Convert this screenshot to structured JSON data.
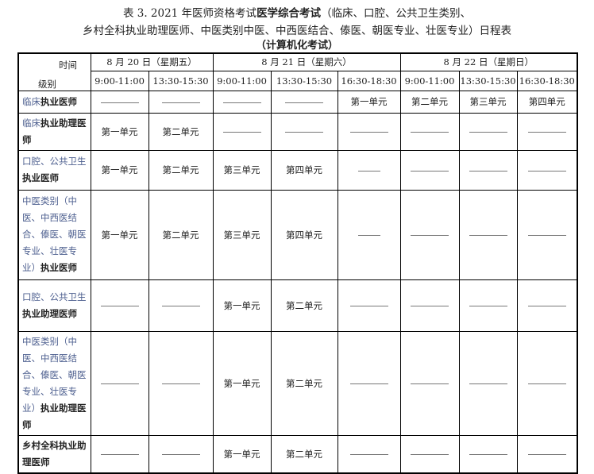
{
  "title": {
    "line1_prefix": "表 3.  2021 年医师资格考试",
    "line1_bold": "医学综合考试",
    "line1_suffix": "（临床、口腔、公共卫生类别、",
    "line2": "乡村全科执业助理医师、中医类别中医、中西医结合、傣医、朝医专业、壮医专业）日程表",
    "line3": "（计算机化考试）"
  },
  "header": {
    "time_label": "时间",
    "level_label": "级别",
    "dates": [
      "8 月 20 日（星期五）",
      "8 月 21 日（星期六）",
      "8 月 22 日（星期日）"
    ],
    "slots": [
      "9:00-11:00",
      "13:30-15:30",
      "9:00-11:00",
      "13:30-15:30",
      "16:30-18:30",
      "9:00-11:00",
      "13:30-15:30",
      "16:30-18:30"
    ]
  },
  "rows": [
    {
      "prefix": "临床",
      "bold": "执业医师",
      "cells": [
        "—",
        "—",
        "—",
        "—",
        "第一单元",
        "第二单元",
        "第三单元",
        "第四单元"
      ]
    },
    {
      "prefix": "临床",
      "bold": "执业助理医师",
      "cells": [
        "第一单元",
        "第二单元",
        "—",
        "—",
        "—",
        "—",
        "—",
        "—"
      ]
    },
    {
      "prefix": "口腔、公共卫生",
      "bold": "执业医师",
      "cells": [
        "第一单元",
        "第二单元",
        "第三单元",
        "第四单元",
        "—",
        "—",
        "—",
        "—"
      ]
    },
    {
      "prefix": "中医类别（中医、中西医结合、傣医、朝医专业、壮医专业）",
      "bold": "执业医师",
      "cells": [
        "第一单元",
        "第二单元",
        "第三单元",
        "第四单元",
        "—",
        "—",
        "—",
        "—"
      ]
    },
    {
      "prefix": "口腔、公共卫生",
      "bold": "执业助理医师",
      "cells": [
        "—",
        "—",
        "第一单元",
        "第二单元",
        "—",
        "—",
        "—",
        "—"
      ]
    },
    {
      "prefix": "中医类别（中医、中西医结合、傣医、朝医专业、壮医专业）",
      "bold": "执业助理医师",
      "cells": [
        "—",
        "—",
        "第一单元",
        "第二单元",
        "—",
        "—",
        "—",
        "—"
      ]
    },
    {
      "prefix": "",
      "bold": "乡村全科执业助理医师",
      "cells": [
        "—",
        "—",
        "第一单元",
        "第二单元",
        "—",
        "—",
        "—",
        "—"
      ]
    }
  ]
}
